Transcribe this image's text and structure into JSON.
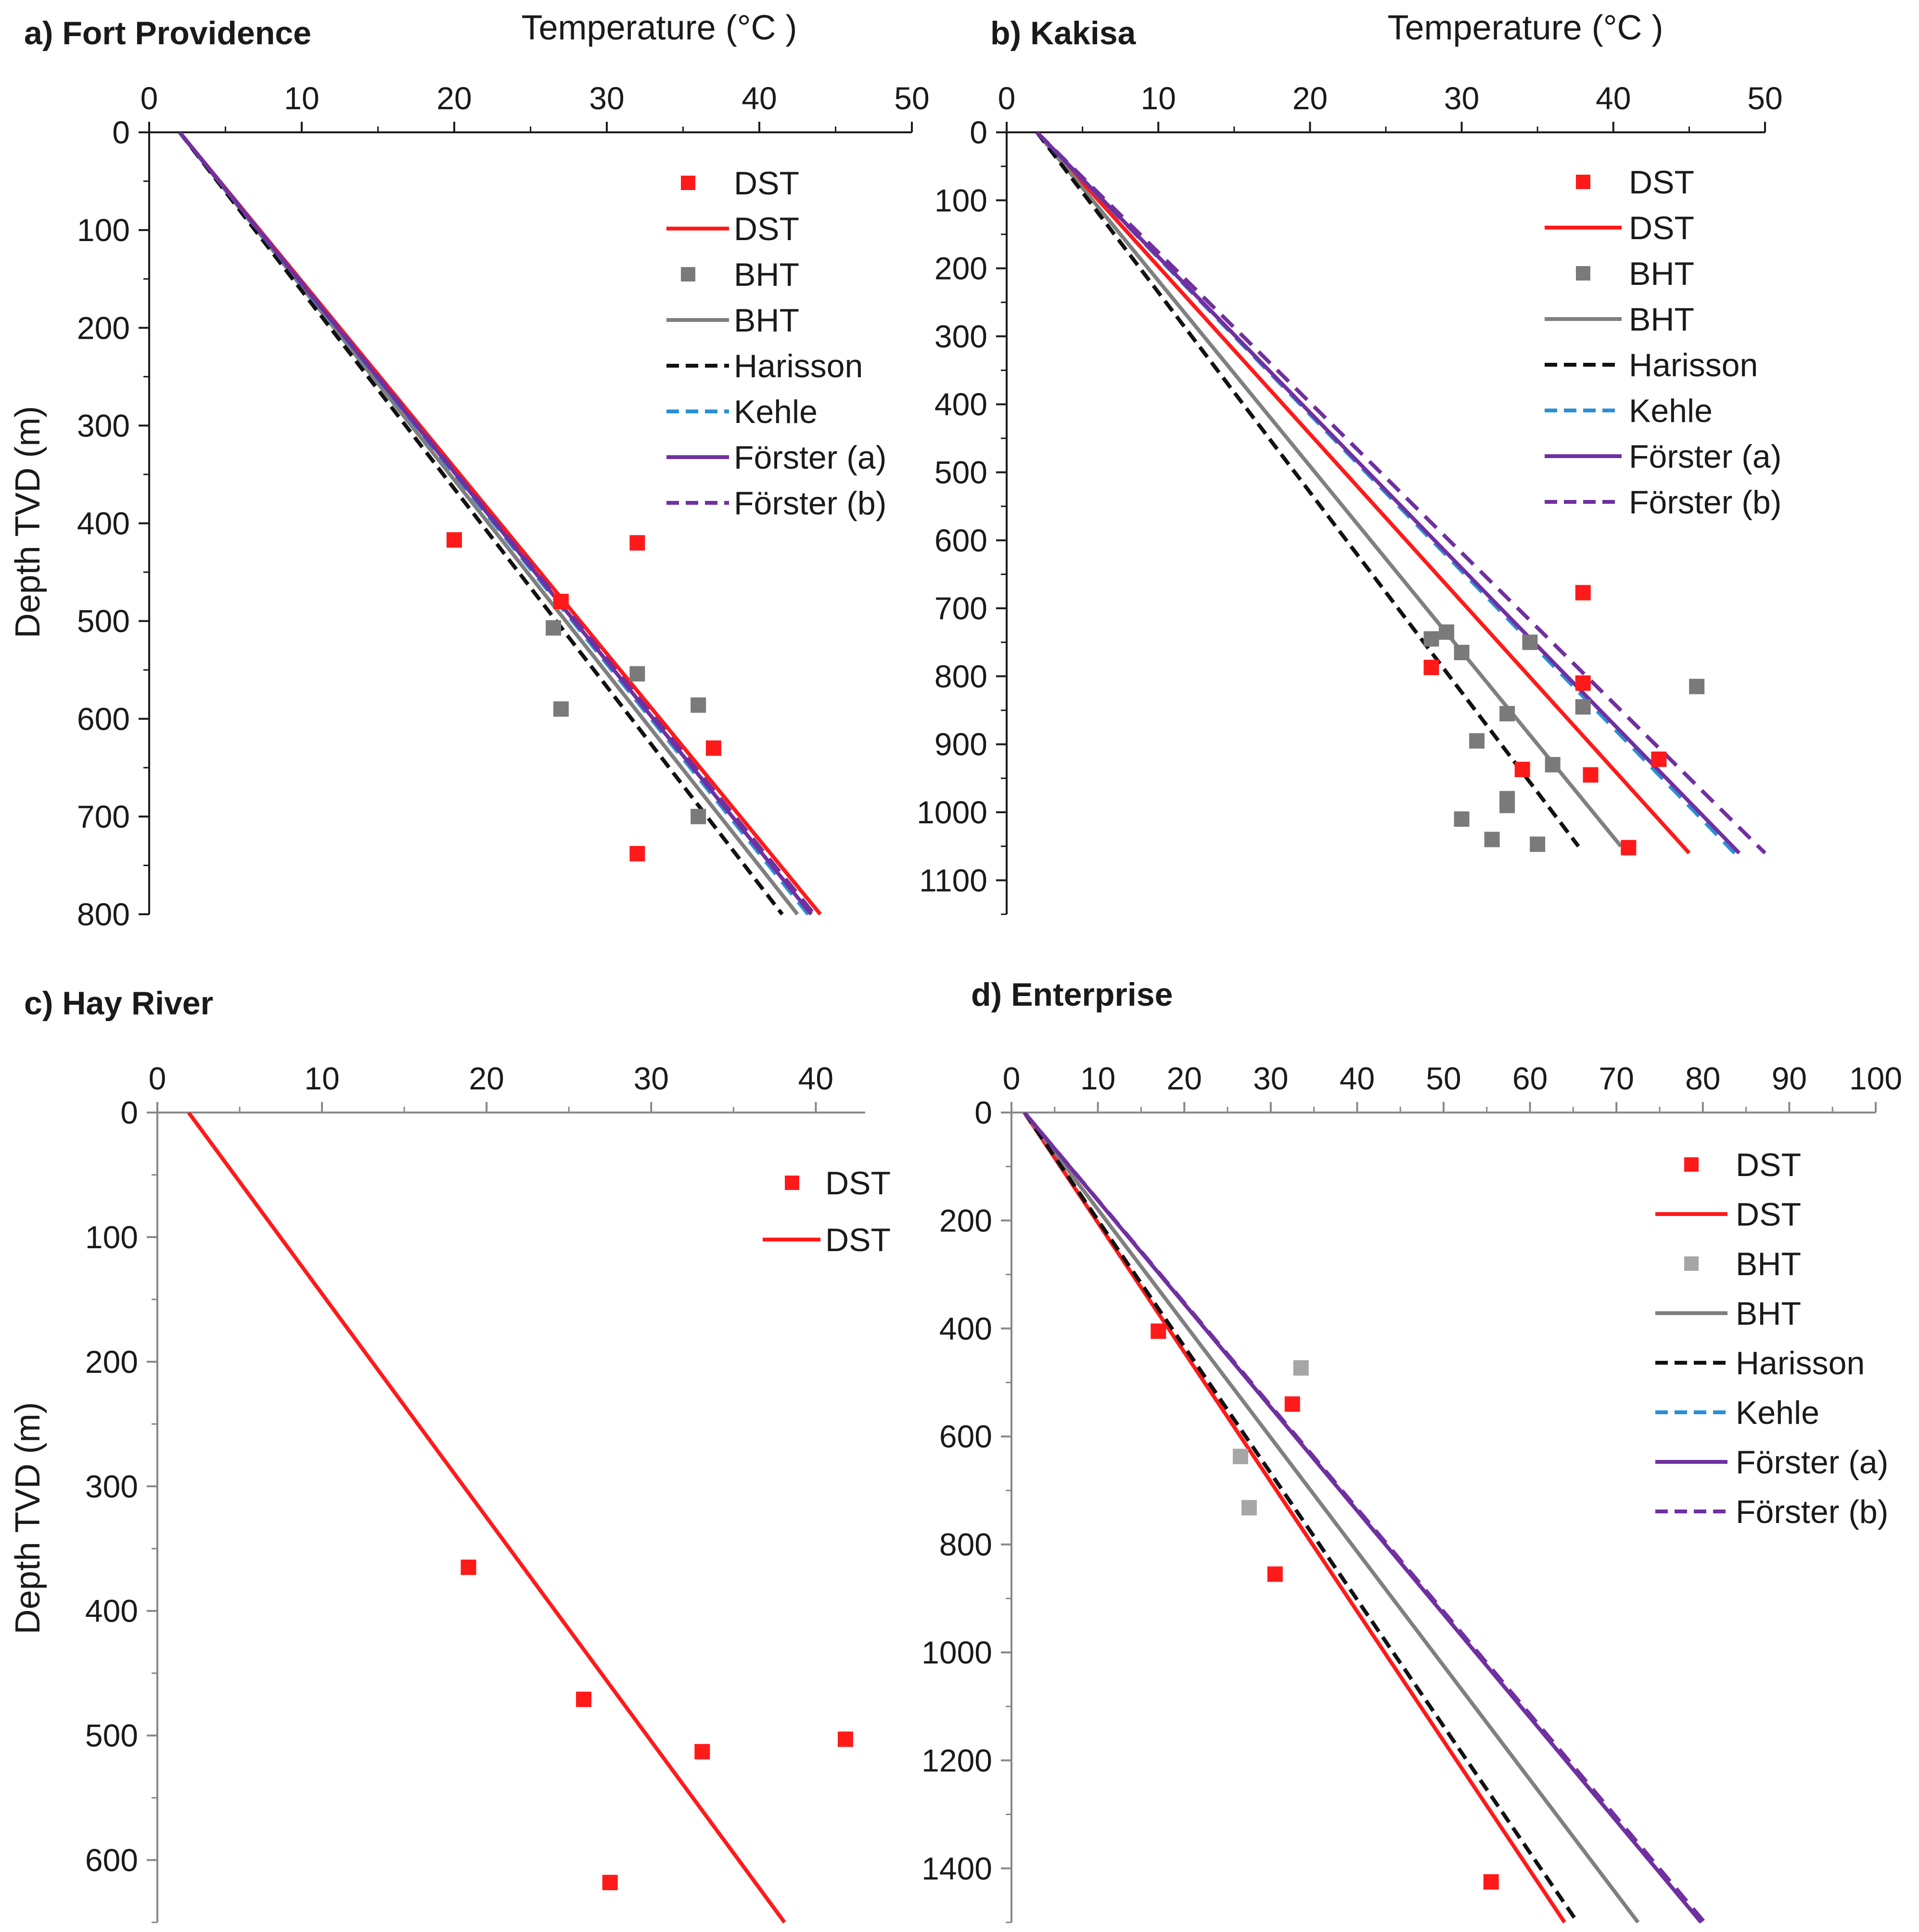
{
  "colors": {
    "dst": "#ff1a1a",
    "bht_marker_dark": "#7a7a7a",
    "bht_marker_light": "#a6a6a6",
    "bht_line": "#808080",
    "harisson": "#111111",
    "kehle": "#2b8fd6",
    "forster": "#7030a0",
    "axis": "#1a1a1a"
  },
  "chart_data": [
    {
      "id": "a",
      "type": "line",
      "title": "a) Fort Providence",
      "xlabel": "Temperature (°C )",
      "ylabel": "Depth TVD (m)",
      "x_axis_position": "top",
      "y_inverted": true,
      "xlim": [
        0,
        50
      ],
      "ylim": [
        0,
        800
      ],
      "xticks": [
        0,
        10,
        20,
        30,
        40,
        50
      ],
      "yticks": [
        0,
        100,
        200,
        300,
        400,
        500,
        600,
        700,
        800
      ],
      "legend_position": "top-right",
      "legend": [
        "DST",
        "DST",
        "BHT",
        "BHT",
        "Harisson",
        "Kehle",
        "Förster (a)",
        "Förster (b)"
      ],
      "series": [
        {
          "name": "DST",
          "kind": "scatter",
          "color_key": "dst",
          "points": [
            [
              20,
              417
            ],
            [
              27,
              480
            ],
            [
              32,
              420
            ],
            [
              37,
              630
            ],
            [
              32,
              738
            ]
          ]
        },
        {
          "name": "DST",
          "kind": "line",
          "color_key": "dst",
          "dash": "solid",
          "points": [
            [
              2,
              0
            ],
            [
              44,
              800
            ]
          ]
        },
        {
          "name": "BHT",
          "kind": "scatter",
          "color_key": "bht_marker_dark",
          "points": [
            [
              26.5,
              507
            ],
            [
              27,
              590
            ],
            [
              32,
              554
            ],
            [
              36,
              586
            ],
            [
              36,
              700
            ]
          ]
        },
        {
          "name": "BHT",
          "kind": "line",
          "color_key": "bht_line",
          "dash": "solid",
          "points": [
            [
              2,
              0
            ],
            [
              42.5,
              800
            ]
          ]
        },
        {
          "name": "Harisson",
          "kind": "line",
          "color_key": "harisson",
          "dash": "dashed",
          "points": [
            [
              2,
              0
            ],
            [
              41.5,
              800
            ]
          ]
        },
        {
          "name": "Kehle",
          "kind": "line",
          "color_key": "kehle",
          "dash": "dashed",
          "points": [
            [
              2,
              0
            ],
            [
              43.2,
              800
            ]
          ]
        },
        {
          "name": "Förster (a)",
          "kind": "line",
          "color_key": "forster",
          "dash": "solid",
          "points": [
            [
              2,
              0
            ],
            [
              43.4,
              800
            ]
          ]
        },
        {
          "name": "Förster (b)",
          "kind": "line",
          "color_key": "forster",
          "dash": "dashed",
          "points": [
            [
              2,
              0
            ],
            [
              43.6,
              800
            ]
          ]
        }
      ]
    },
    {
      "id": "b",
      "type": "line",
      "title": "b) Kakisa",
      "xlabel": "Temperature (°C )",
      "ylabel": "",
      "x_axis_position": "top",
      "y_inverted": true,
      "xlim": [
        0,
        50
      ],
      "ylim": [
        0,
        1150
      ],
      "xticks": [
        0,
        10,
        20,
        30,
        40,
        50
      ],
      "yticks": [
        0,
        100,
        200,
        300,
        400,
        500,
        600,
        700,
        800,
        900,
        1000,
        1100
      ],
      "legend_position": "top-right",
      "legend": [
        "DST",
        "DST",
        "BHT",
        "BHT",
        "Harisson",
        "Kehle",
        "Förster (a)",
        "Förster (b)"
      ],
      "series": [
        {
          "name": "DST",
          "kind": "scatter",
          "color_key": "dst",
          "points": [
            [
              38,
              677
            ],
            [
              28,
              787
            ],
            [
              38,
              810
            ],
            [
              43,
              922
            ],
            [
              34,
              937
            ],
            [
              38.5,
              945
            ],
            [
              41,
              1052
            ]
          ]
        },
        {
          "name": "DST",
          "kind": "line",
          "color_key": "dst",
          "dash": "solid",
          "points": [
            [
              2,
              0
            ],
            [
              45,
              1060
            ]
          ]
        },
        {
          "name": "BHT",
          "kind": "scatter",
          "color_key": "bht_marker_dark",
          "points": [
            [
              28,
              745
            ],
            [
              29,
              735
            ],
            [
              30,
              765
            ],
            [
              34.5,
              750
            ],
            [
              33,
              855
            ],
            [
              31,
              895
            ],
            [
              45.5,
              815
            ],
            [
              38,
              845
            ],
            [
              36,
              930
            ],
            [
              33,
              980
            ],
            [
              33,
              990
            ],
            [
              30,
              1010
            ],
            [
              32,
              1040
            ],
            [
              35,
              1047
            ]
          ]
        },
        {
          "name": "BHT",
          "kind": "line",
          "color_key": "bht_line",
          "dash": "solid",
          "points": [
            [
              2,
              0
            ],
            [
              40.5,
              1050
            ]
          ]
        },
        {
          "name": "Harisson",
          "kind": "line",
          "color_key": "harisson",
          "dash": "dashed",
          "points": [
            [
              2,
              0
            ],
            [
              37.7,
              1050
            ]
          ]
        },
        {
          "name": "Kehle",
          "kind": "line",
          "color_key": "kehle",
          "dash": "dashed",
          "points": [
            [
              2,
              0
            ],
            [
              48,
              1060
            ]
          ]
        },
        {
          "name": "Förster (a)",
          "kind": "line",
          "color_key": "forster",
          "dash": "solid",
          "points": [
            [
              2,
              0
            ],
            [
              48.3,
              1060
            ]
          ]
        },
        {
          "name": "Förster (b)",
          "kind": "line",
          "color_key": "forster",
          "dash": "dashed",
          "points": [
            [
              2,
              0
            ],
            [
              50,
              1060
            ]
          ]
        }
      ]
    },
    {
      "id": "c",
      "type": "line",
      "title": "c) Hay River",
      "xlabel": "",
      "ylabel": "Depth TVD (m)",
      "x_axis_position": "top",
      "y_inverted": true,
      "xlim": [
        0,
        43
      ],
      "ylim": [
        0,
        650
      ],
      "xticks": [
        0,
        10,
        20,
        30,
        40
      ],
      "yticks": [
        0,
        100,
        200,
        300,
        400,
        500,
        600
      ],
      "legend_position": "top-right",
      "legend": [
        "DST",
        "DST"
      ],
      "series": [
        {
          "name": "DST",
          "kind": "scatter",
          "color_key": "dst",
          "points": [
            [
              18.9,
              365
            ],
            [
              25.9,
              471
            ],
            [
              33.1,
              513
            ],
            [
              41.8,
              503
            ],
            [
              27.5,
              618
            ]
          ]
        },
        {
          "name": "DST",
          "kind": "line",
          "color_key": "dst",
          "dash": "solid",
          "points": [
            [
              1.9,
              0
            ],
            [
              38.1,
              650
            ]
          ]
        }
      ]
    },
    {
      "id": "d",
      "type": "line",
      "title": "d) Enterprise",
      "xlabel": "",
      "ylabel": "",
      "x_axis_position": "top",
      "y_inverted": true,
      "xlim": [
        0,
        100
      ],
      "ylim": [
        0,
        1500
      ],
      "xticks": [
        0,
        10,
        20,
        30,
        40,
        50,
        60,
        70,
        80,
        90,
        100
      ],
      "yticks": [
        0,
        200,
        400,
        600,
        800,
        1000,
        1200,
        1400
      ],
      "legend_position": "top-right",
      "legend": [
        "DST",
        "DST",
        "BHT",
        "BHT",
        "Harisson",
        "Kehle",
        "Förster (a)",
        "Förster (b)"
      ],
      "series": [
        {
          "name": "DST",
          "kind": "scatter",
          "color_key": "dst",
          "points": [
            [
              17,
              405
            ],
            [
              32.5,
              540
            ],
            [
              30.5,
              855
            ],
            [
              55.5,
              1425
            ]
          ]
        },
        {
          "name": "DST",
          "kind": "line",
          "color_key": "dst",
          "dash": "solid",
          "points": [
            [
              1.5,
              0
            ],
            [
              64,
              1500
            ]
          ]
        },
        {
          "name": "BHT",
          "kind": "scatter",
          "color_key": "bht_marker_light",
          "points": [
            [
              33.5,
              473
            ],
            [
              26.5,
              637
            ],
            [
              27.5,
              732
            ]
          ]
        },
        {
          "name": "BHT",
          "kind": "line",
          "color_key": "bht_line",
          "dash": "solid",
          "points": [
            [
              1.5,
              0
            ],
            [
              72.5,
              1500
            ]
          ]
        },
        {
          "name": "Harisson",
          "kind": "line",
          "color_key": "harisson",
          "dash": "dashed",
          "points": [
            [
              1.5,
              0
            ],
            [
              65.5,
              1500
            ]
          ]
        },
        {
          "name": "Kehle",
          "kind": "line",
          "color_key": "kehle",
          "dash": "dashed",
          "points": [
            [
              1.5,
              0
            ],
            [
              80,
              1500
            ]
          ]
        },
        {
          "name": "Förster (a)",
          "kind": "line",
          "color_key": "forster",
          "dash": "solid",
          "points": [
            [
              1.5,
              0
            ],
            [
              79.8,
              1500
            ]
          ]
        },
        {
          "name": "Förster (b)",
          "kind": "line",
          "color_key": "forster",
          "dash": "dashed",
          "points": [
            [
              1.5,
              0
            ],
            [
              80.2,
              1500
            ]
          ]
        }
      ]
    }
  ]
}
